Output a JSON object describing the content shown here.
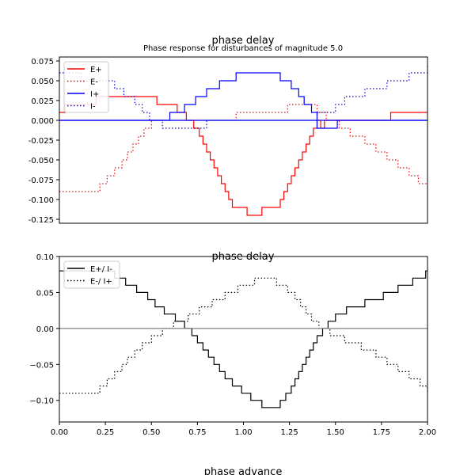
{
  "figure": {
    "title_top": "phase delay",
    "subtitle_top": "Phase response for disturbances of magnitude 5.0",
    "title_bottom": "phase delay",
    "bottom_label": "phase advance"
  },
  "chart_data": [
    {
      "type": "line",
      "title": "phase delay",
      "subtitle": "Phase response for disturbances of magnitude 5.0",
      "xlim": [
        0,
        2
      ],
      "ylim": [
        -0.13,
        0.08
      ],
      "yticks": [
        "0.075",
        "0.050",
        "0.025",
        "0.000",
        "-0.025",
        "-0.050",
        "-0.075",
        "-0.100",
        "-0.125"
      ],
      "ytick_values": [
        0.075,
        0.05,
        0.025,
        0,
        -0.025,
        -0.05,
        -0.075,
        -0.1,
        -0.125
      ],
      "grid": false,
      "legend": "upper-left",
      "series": [
        {
          "name": "E+",
          "color": "#ff0000",
          "style": "solid",
          "x": [
            0.0,
            0.03,
            0.2,
            0.53,
            0.64,
            0.69,
            0.73,
            0.76,
            0.78,
            0.8,
            0.82,
            0.84,
            0.86,
            0.88,
            0.9,
            0.92,
            0.94,
            0.97,
            1.02,
            1.1,
            1.14,
            1.2,
            1.22,
            1.24,
            1.26,
            1.28,
            1.3,
            1.32,
            1.34,
            1.36,
            1.38,
            1.4,
            1.42,
            1.44,
            1.46,
            1.8,
            2.0
          ],
          "y": [
            0.01,
            0.02,
            0.03,
            0.02,
            0.01,
            0.0,
            -0.01,
            -0.02,
            -0.03,
            -0.04,
            -0.05,
            -0.06,
            -0.07,
            -0.08,
            -0.09,
            -0.1,
            -0.11,
            -0.11,
            -0.12,
            -0.11,
            -0.11,
            -0.1,
            -0.09,
            -0.08,
            -0.07,
            -0.06,
            -0.05,
            -0.04,
            -0.03,
            -0.02,
            -0.01,
            0.0,
            -0.01,
            0.0,
            0.0,
            0.01,
            0.01
          ]
        },
        {
          "name": "E-",
          "color": "#ff0000",
          "style": "dotted",
          "x": [
            0.0,
            0.22,
            0.26,
            0.3,
            0.34,
            0.37,
            0.4,
            0.43,
            0.46,
            0.5,
            0.56,
            0.96,
            1.24,
            1.4,
            1.45,
            1.52,
            1.58,
            1.66,
            1.72,
            1.78,
            1.84,
            1.9,
            1.95,
            2.0
          ],
          "y": [
            -0.09,
            -0.08,
            -0.07,
            -0.06,
            -0.05,
            -0.04,
            -0.03,
            -0.02,
            -0.01,
            0.0,
            0.0,
            0.01,
            0.02,
            0.01,
            0.0,
            -0.01,
            -0.02,
            -0.03,
            -0.04,
            -0.05,
            -0.06,
            -0.07,
            -0.08,
            -0.08
          ]
        },
        {
          "name": "I+",
          "color": "#0000ff",
          "style": "solid",
          "x": [
            0.0,
            0.6,
            0.68,
            0.74,
            0.8,
            0.87,
            0.96,
            1.2,
            1.26,
            1.3,
            1.33,
            1.37,
            1.4,
            1.51,
            2.0
          ],
          "y": [
            0.0,
            0.01,
            0.02,
            0.03,
            0.04,
            0.05,
            0.06,
            0.05,
            0.04,
            0.03,
            0.02,
            0.01,
            -0.01,
            0.0,
            0.0
          ]
        },
        {
          "name": "I-",
          "color": "#0000ff",
          "style": "dotted",
          "x": [
            0.0,
            0.12,
            0.25,
            0.3,
            0.35,
            0.41,
            0.45,
            0.49,
            0.56,
            0.63,
            0.8,
            1.4,
            1.5,
            1.55,
            1.66,
            1.78,
            1.9,
            2.0
          ],
          "y": [
            0.06,
            0.05,
            0.05,
            0.04,
            0.03,
            0.02,
            0.01,
            0.0,
            -0.01,
            -0.01,
            0.0,
            0.01,
            0.02,
            0.03,
            0.04,
            0.05,
            0.06,
            0.07
          ]
        },
        {
          "name": "",
          "color": "#0000ff",
          "style": "solid",
          "x": [
            0.0,
            2.0
          ],
          "y": [
            0.0,
            0.0
          ]
        }
      ]
    },
    {
      "type": "line",
      "title": "phase delay",
      "xlim": [
        0,
        2
      ],
      "ylim": [
        -0.13,
        0.1
      ],
      "xticks": [
        "0.00",
        "0.25",
        "0.50",
        "0.75",
        "1.00",
        "1.25",
        "1.50",
        "1.75",
        "2.00"
      ],
      "xtick_values": [
        0,
        0.25,
        0.5,
        0.75,
        1.0,
        1.25,
        1.5,
        1.75,
        2.0
      ],
      "yticks": [
        "0.10",
        "0.05",
        "0.00",
        "−0.05",
        "−0.10"
      ],
      "ytick_values": [
        0.1,
        0.05,
        0,
        -0.05,
        -0.1
      ],
      "grid": false,
      "legend": "upper-left",
      "series": [
        {
          "name": "E+/ I-",
          "color": "#000000",
          "style": "solid",
          "x": [
            0.0,
            0.3,
            0.36,
            0.42,
            0.48,
            0.52,
            0.57,
            0.63,
            0.68,
            0.72,
            0.75,
            0.78,
            0.81,
            0.84,
            0.87,
            0.9,
            0.94,
            0.99,
            1.04,
            1.1,
            1.16,
            1.2,
            1.23,
            1.26,
            1.28,
            1.3,
            1.32,
            1.34,
            1.36,
            1.38,
            1.4,
            1.43,
            1.46,
            1.5,
            1.56,
            1.66,
            1.76,
            1.84,
            1.92,
            1.99,
            2.0
          ],
          "y": [
            0.08,
            0.07,
            0.06,
            0.05,
            0.04,
            0.03,
            0.02,
            0.01,
            0.0,
            -0.01,
            -0.02,
            -0.03,
            -0.04,
            -0.05,
            -0.06,
            -0.07,
            -0.08,
            -0.09,
            -0.1,
            -0.11,
            -0.11,
            -0.1,
            -0.09,
            -0.08,
            -0.07,
            -0.06,
            -0.05,
            -0.04,
            -0.03,
            -0.02,
            -0.01,
            0.0,
            0.01,
            0.02,
            0.03,
            0.04,
            0.05,
            0.06,
            0.07,
            0.08,
            0.08
          ]
        },
        {
          "name": "E-/ I+",
          "color": "#000000",
          "style": "dotted",
          "x": [
            0.0,
            0.22,
            0.26,
            0.3,
            0.34,
            0.37,
            0.41,
            0.45,
            0.5,
            0.56,
            0.62,
            0.7,
            0.76,
            0.83,
            0.9,
            0.97,
            1.06,
            1.18,
            1.24,
            1.28,
            1.31,
            1.34,
            1.37,
            1.41,
            1.47,
            1.55,
            1.64,
            1.72,
            1.78,
            1.84,
            1.9,
            1.96,
            2.0
          ],
          "y": [
            -0.09,
            -0.08,
            -0.07,
            -0.06,
            -0.05,
            -0.04,
            -0.03,
            -0.02,
            -0.01,
            0.0,
            0.01,
            0.02,
            0.03,
            0.04,
            0.05,
            0.06,
            0.07,
            0.06,
            0.05,
            0.04,
            0.03,
            0.02,
            0.01,
            0.0,
            -0.01,
            -0.02,
            -0.03,
            -0.04,
            -0.05,
            -0.06,
            -0.07,
            -0.08,
            -0.09
          ]
        },
        {
          "name": "",
          "color": "#808080",
          "style": "solid",
          "x": [
            0.0,
            2.0
          ],
          "y": [
            0.0,
            0.0
          ]
        }
      ]
    }
  ]
}
